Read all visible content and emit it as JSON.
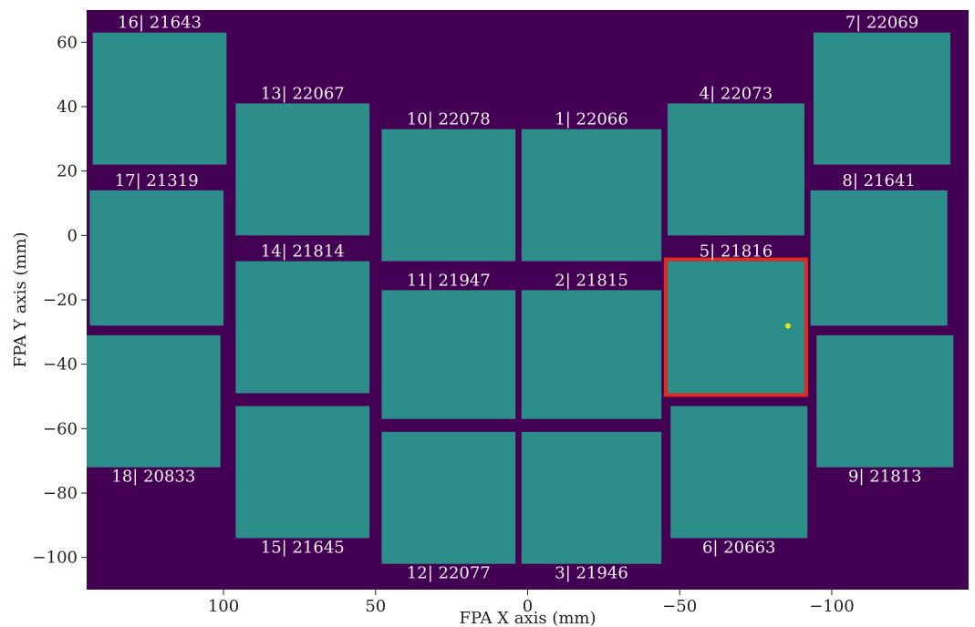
{
  "chart_data": {
    "type": "heatmap",
    "title": "",
    "xlabel": "FPA X axis (mm)",
    "ylabel": "FPA Y axis (mm)",
    "x_axis_inverted": true,
    "xlim": [
      145,
      -145
    ],
    "ylim": [
      -110,
      70
    ],
    "xticks": [
      100,
      50,
      0,
      -50,
      -100
    ],
    "xtick_labels": [
      "100",
      "50",
      "0",
      "−50",
      "−100"
    ],
    "yticks": [
      60,
      40,
      20,
      0,
      -20,
      -40,
      -60,
      -80,
      -100
    ],
    "ytick_labels": [
      "60",
      "40",
      "20",
      "0",
      "−20",
      "−40",
      "−60",
      "−80",
      "−100"
    ],
    "grid": false,
    "colors": {
      "background": "#440154",
      "detector_fill": "#2d8d8a",
      "highlight_border": "#e02b20",
      "hot_pixel": "#e8e419",
      "label_text": "#f0f0f0"
    },
    "detectors": [
      {
        "id": 1,
        "serial": 22066,
        "label": "1| 22066",
        "x": [
          2,
          -44
        ],
        "y": [
          -8,
          33
        ],
        "label_side": "above"
      },
      {
        "id": 2,
        "serial": 21815,
        "label": "2| 21815",
        "x": [
          2,
          -44
        ],
        "y": [
          -57,
          -17
        ],
        "label_side": "above"
      },
      {
        "id": 3,
        "serial": 21946,
        "label": "3| 21946",
        "x": [
          2,
          -44
        ],
        "y": [
          -102,
          -61
        ],
        "label_side": "below"
      },
      {
        "id": 4,
        "serial": 22073,
        "label": "4| 22073",
        "x": [
          -46,
          -91
        ],
        "y": [
          0,
          41
        ],
        "label_side": "above"
      },
      {
        "id": 5,
        "serial": 21816,
        "label": "5| 21816",
        "x": [
          -46,
          -91
        ],
        "y": [
          -49,
          -8
        ],
        "label_side": "above",
        "highlighted": true
      },
      {
        "id": 6,
        "serial": 20663,
        "label": "6| 20663",
        "x": [
          -47,
          -92
        ],
        "y": [
          -94,
          -53
        ],
        "label_side": "below"
      },
      {
        "id": 7,
        "serial": 22069,
        "label": "7| 22069",
        "x": [
          -94,
          -139
        ],
        "y": [
          22,
          63
        ],
        "label_side": "above"
      },
      {
        "id": 8,
        "serial": 21641,
        "label": "8| 21641",
        "x": [
          -93,
          -138
        ],
        "y": [
          -28,
          14
        ],
        "label_side": "above"
      },
      {
        "id": 9,
        "serial": 21813,
        "label": "9| 21813",
        "x": [
          -95,
          -140
        ],
        "y": [
          -72,
          -31
        ],
        "label_side": "below"
      },
      {
        "id": 10,
        "serial": 22078,
        "label": "10| 22078",
        "x": [
          48,
          4
        ],
        "y": [
          -8,
          33
        ],
        "label_side": "above"
      },
      {
        "id": 11,
        "serial": 21947,
        "label": "11| 21947",
        "x": [
          48,
          4
        ],
        "y": [
          -57,
          -17
        ],
        "label_side": "above"
      },
      {
        "id": 12,
        "serial": 22077,
        "label": "12| 22077",
        "x": [
          48,
          4
        ],
        "y": [
          -102,
          -61
        ],
        "label_side": "below"
      },
      {
        "id": 13,
        "serial": 22067,
        "label": "13| 22067",
        "x": [
          96,
          52
        ],
        "y": [
          0,
          41
        ],
        "label_side": "above"
      },
      {
        "id": 14,
        "serial": 21814,
        "label": "14| 21814",
        "x": [
          96,
          52
        ],
        "y": [
          -49,
          -8
        ],
        "label_side": "above"
      },
      {
        "id": 15,
        "serial": 21645,
        "label": "15| 21645",
        "x": [
          96,
          52
        ],
        "y": [
          -94,
          -53
        ],
        "label_side": "below"
      },
      {
        "id": 16,
        "serial": 21643,
        "label": "16| 21643",
        "x": [
          143,
          99
        ],
        "y": [
          22,
          63
        ],
        "label_side": "above"
      },
      {
        "id": 17,
        "serial": 21319,
        "label": "17| 21319",
        "x": [
          144,
          100
        ],
        "y": [
          -28,
          14
        ],
        "label_side": "above"
      },
      {
        "id": 18,
        "serial": 20833,
        "label": "18| 20833",
        "x": [
          145,
          101
        ],
        "y": [
          -72,
          -31
        ],
        "label_side": "below"
      }
    ]
  }
}
